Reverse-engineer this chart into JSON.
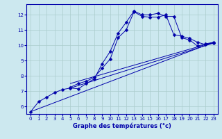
{
  "xlabel": "Graphe des températures (°c)",
  "background_color": "#cce8ef",
  "grid_color": "#aacccc",
  "line_color": "#0000aa",
  "xlim": [
    -0.5,
    23.5
  ],
  "ylim": [
    5.5,
    12.7
  ],
  "xticks": [
    0,
    1,
    2,
    3,
    4,
    5,
    6,
    7,
    8,
    9,
    10,
    11,
    12,
    13,
    14,
    15,
    16,
    17,
    18,
    19,
    20,
    21,
    22,
    23
  ],
  "yticks": [
    6,
    7,
    8,
    9,
    10,
    11,
    12
  ],
  "series": [
    {
      "x": [
        0,
        1,
        2,
        3,
        4,
        5,
        6,
        7,
        8,
        9,
        10,
        11,
        12,
        13,
        14,
        15,
        16,
        17,
        18,
        19,
        20,
        21,
        22,
        23
      ],
      "y": [
        5.65,
        6.3,
        6.6,
        6.9,
        7.1,
        7.2,
        7.15,
        7.5,
        7.8,
        8.8,
        9.6,
        10.8,
        11.5,
        12.25,
        12.0,
        12.0,
        12.1,
        11.9,
        11.9,
        10.5,
        10.35,
        9.95,
        10.1,
        10.2
      ],
      "marker": true,
      "markersize": 2.5
    },
    {
      "x": [
        5,
        6,
        7,
        8,
        9,
        10,
        11,
        12,
        13,
        14,
        15,
        16,
        17,
        18,
        19,
        20,
        21,
        22,
        23
      ],
      "y": [
        7.25,
        7.5,
        7.65,
        7.9,
        8.5,
        9.1,
        10.5,
        11.0,
        12.2,
        11.9,
        11.85,
        11.85,
        12.0,
        10.7,
        10.6,
        10.45,
        10.2,
        10.05,
        10.15
      ],
      "marker": true,
      "markersize": 2.5
    },
    {
      "x": [
        0,
        23
      ],
      "y": [
        5.65,
        10.2
      ],
      "marker": false,
      "markersize": 0
    },
    {
      "x": [
        5,
        23
      ],
      "y": [
        7.2,
        10.15
      ],
      "marker": false,
      "markersize": 0
    },
    {
      "x": [
        5,
        23
      ],
      "y": [
        7.5,
        10.2
      ],
      "marker": false,
      "markersize": 0
    }
  ]
}
